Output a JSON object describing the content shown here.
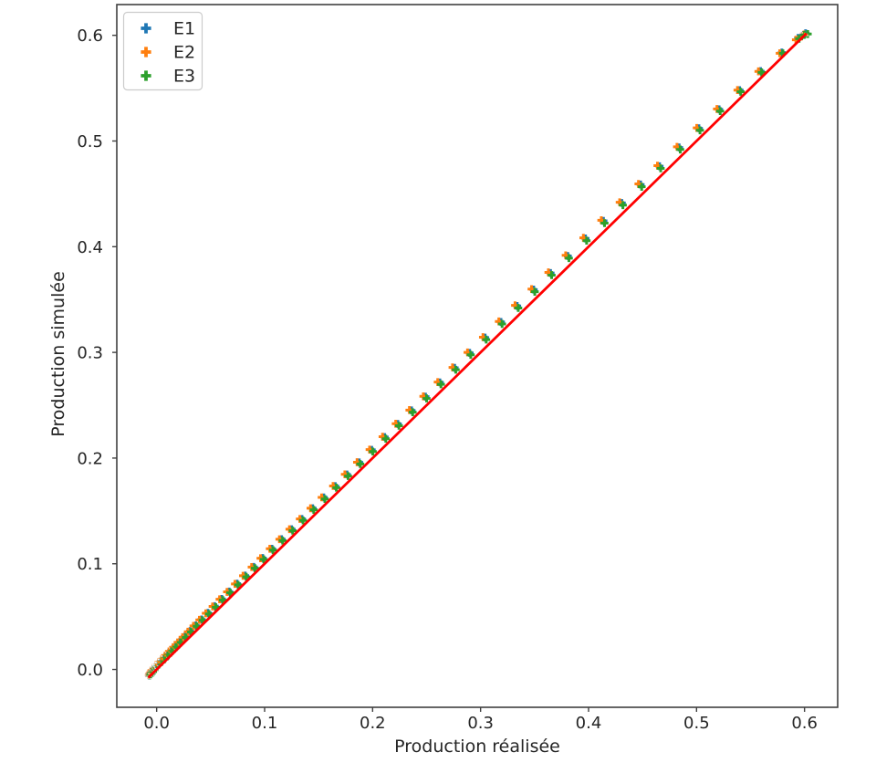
{
  "figure": {
    "background": "#ffffff",
    "text_color": "#262626",
    "spine_color": "#404040"
  },
  "chart_data": {
    "type": "scatter",
    "title": "",
    "xlabel": "Production réalisée",
    "ylabel": "Production simulée",
    "xlim": [
      -0.0369,
      0.6307
    ],
    "ylim": [
      -0.0358,
      0.6291
    ],
    "grid": false,
    "x_ticks": [
      0.0,
      0.1,
      0.2,
      0.3,
      0.4,
      0.5,
      0.6
    ],
    "x_tick_labels": [
      "0.0",
      "0.1",
      "0.2",
      "0.3",
      "0.4",
      "0.5",
      "0.6"
    ],
    "y_ticks": [
      0.0,
      0.1,
      0.2,
      0.3,
      0.4,
      0.5,
      0.6
    ],
    "y_tick_labels": [
      "0.0",
      "0.1",
      "0.2",
      "0.3",
      "0.4",
      "0.5",
      "0.6"
    ],
    "legend": {
      "location": "upper left"
    },
    "identity_line": {
      "name": "identity-line",
      "color": "#ff0000",
      "width": 2.8,
      "from": [
        -0.007,
        -0.007
      ],
      "to": [
        0.601,
        0.601
      ]
    },
    "marker_style": "plus_filled",
    "series": [
      {
        "name": "E1",
        "color": "#1f77b4",
        "points": [
          [
            -0.007,
            -0.0056
          ],
          [
            -0.0068,
            -0.0052
          ],
          [
            -0.0063,
            -0.0045
          ],
          [
            -0.0055,
            -0.0034
          ],
          [
            -0.0043,
            -0.0018
          ],
          [
            -0.0028,
            0.0001
          ],
          [
            -0.0009,
            0.0024
          ],
          [
            0.0012,
            0.0047
          ],
          [
            0.0038,
            0.0076
          ],
          [
            0.0066,
            0.0105
          ],
          [
            0.0098,
            0.014
          ],
          [
            0.0134,
            0.0178
          ],
          [
            0.0172,
            0.0218
          ],
          [
            0.0214,
            0.0262
          ],
          [
            0.026,
            0.0311
          ],
          [
            0.0309,
            0.0363
          ],
          [
            0.0361,
            0.0417
          ],
          [
            0.0416,
            0.0473
          ],
          [
            0.0475,
            0.0535
          ],
          [
            0.0538,
            0.0599
          ],
          [
            0.0603,
            0.0667
          ],
          [
            0.0672,
            0.0737
          ],
          [
            0.0745,
            0.0812
          ],
          [
            0.082,
            0.0888
          ],
          [
            0.09,
            0.097
          ],
          [
            0.0982,
            0.1054
          ],
          [
            0.1068,
            0.1142
          ],
          [
            0.1157,
            0.1233
          ],
          [
            0.125,
            0.1327
          ],
          [
            0.1346,
            0.1424
          ],
          [
            0.1445,
            0.1525
          ],
          [
            0.1548,
            0.1628
          ],
          [
            0.1654,
            0.1735
          ],
          [
            0.1763,
            0.1845
          ],
          [
            0.1876,
            0.1959
          ],
          [
            0.1992,
            0.2078
          ],
          [
            0.2112,
            0.2199
          ],
          [
            0.2234,
            0.2323
          ],
          [
            0.2361,
            0.2451
          ],
          [
            0.249,
            0.2581
          ],
          [
            0.2623,
            0.2716
          ],
          [
            0.276,
            0.2854
          ],
          [
            0.2899,
            0.2995
          ],
          [
            0.3042,
            0.314
          ],
          [
            0.3189,
            0.3288
          ],
          [
            0.3339,
            0.3439
          ],
          [
            0.3492,
            0.3594
          ],
          [
            0.3648,
            0.3751
          ],
          [
            0.3808,
            0.3912
          ],
          [
            0.3972,
            0.4078
          ],
          [
            0.4138,
            0.4244
          ],
          [
            0.4308,
            0.4414
          ],
          [
            0.4482,
            0.4588
          ],
          [
            0.4658,
            0.4761
          ],
          [
            0.4839,
            0.4939
          ],
          [
            0.5022,
            0.512
          ],
          [
            0.5209,
            0.53
          ],
          [
            0.5399,
            0.5481
          ],
          [
            0.5593,
            0.5661
          ],
          [
            0.579,
            0.5837
          ],
          [
            0.594,
            0.5975
          ],
          [
            0.599,
            0.6003
          ],
          [
            0.601,
            0.602
          ]
        ]
      },
      {
        "name": "E2",
        "color": "#ff7f0e",
        "points": [
          [
            -0.0072,
            -0.0052
          ],
          [
            -0.007,
            -0.0048
          ],
          [
            -0.0065,
            -0.004
          ],
          [
            -0.006,
            -0.0032
          ],
          [
            -0.0055,
            -0.0022
          ],
          [
            -0.0048,
            -0.001
          ],
          [
            -0.0029,
            0.0013
          ],
          [
            -0.0008,
            0.0038
          ],
          [
            0.0018,
            0.0067
          ],
          [
            0.0046,
            0.0096
          ],
          [
            0.0078,
            0.0132
          ],
          [
            0.0114,
            0.0171
          ],
          [
            0.0152,
            0.021
          ],
          [
            0.0194,
            0.0256
          ],
          [
            0.024,
            0.0305
          ],
          [
            0.0289,
            0.0357
          ],
          [
            0.0341,
            0.0412
          ],
          [
            0.0396,
            0.0469
          ],
          [
            0.0455,
            0.0531
          ],
          [
            0.0518,
            0.0596
          ],
          [
            0.0583,
            0.0664
          ],
          [
            0.0652,
            0.0734
          ],
          [
            0.0725,
            0.0809
          ],
          [
            0.08,
            0.0886
          ],
          [
            0.088,
            0.0969
          ],
          [
            0.0962,
            0.1052
          ],
          [
            0.1048,
            0.1142
          ],
          [
            0.1137,
            0.1232
          ],
          [
            0.123,
            0.1327
          ],
          [
            0.1326,
            0.1424
          ],
          [
            0.1425,
            0.1525
          ],
          [
            0.1528,
            0.1628
          ],
          [
            0.1634,
            0.1736
          ],
          [
            0.1743,
            0.1846
          ],
          [
            0.1856,
            0.1961
          ],
          [
            0.1972,
            0.208
          ],
          [
            0.2092,
            0.2202
          ],
          [
            0.2214,
            0.2325
          ],
          [
            0.2341,
            0.2454
          ],
          [
            0.247,
            0.2584
          ],
          [
            0.2603,
            0.2719
          ],
          [
            0.274,
            0.2858
          ],
          [
            0.2879,
            0.3
          ],
          [
            0.3022,
            0.3144
          ],
          [
            0.3169,
            0.3293
          ],
          [
            0.3319,
            0.3445
          ],
          [
            0.3472,
            0.3599
          ],
          [
            0.3628,
            0.3757
          ],
          [
            0.3788,
            0.3918
          ],
          [
            0.3952,
            0.4084
          ],
          [
            0.4118,
            0.425
          ],
          [
            0.4288,
            0.442
          ],
          [
            0.4462,
            0.4594
          ],
          [
            0.4638,
            0.4767
          ],
          [
            0.4819,
            0.4945
          ],
          [
            0.5002,
            0.5124
          ],
          [
            0.5189,
            0.5303
          ],
          [
            0.5379,
            0.5482
          ],
          [
            0.5573,
            0.5659
          ],
          [
            0.577,
            0.583
          ],
          [
            0.592,
            0.5958
          ],
          [
            0.597,
            0.5988
          ],
          [
            0.5995,
            0.6008
          ]
        ]
      },
      {
        "name": "E3",
        "color": "#2ca02c",
        "points": [
          [
            -0.006,
            -0.0055
          ],
          [
            -0.0058,
            -0.0052
          ],
          [
            -0.0053,
            -0.0045
          ],
          [
            -0.0045,
            -0.0035
          ],
          [
            -0.0033,
            -0.002
          ],
          [
            -0.0018,
            -0.0002
          ],
          [
            0.0001,
            0.002
          ],
          [
            0.0022,
            0.0043
          ],
          [
            0.0048,
            0.0071
          ],
          [
            0.0076,
            0.01
          ],
          [
            0.0108,
            0.0134
          ],
          [
            0.0144,
            0.0172
          ],
          [
            0.0182,
            0.0211
          ],
          [
            0.0224,
            0.0255
          ],
          [
            0.027,
            0.0303
          ],
          [
            0.0319,
            0.0354
          ],
          [
            0.0371,
            0.0408
          ],
          [
            0.0426,
            0.0464
          ],
          [
            0.0485,
            0.0525
          ],
          [
            0.0548,
            0.0589
          ],
          [
            0.0613,
            0.0656
          ],
          [
            0.0682,
            0.0726
          ],
          [
            0.0755,
            0.08
          ],
          [
            0.083,
            0.0876
          ],
          [
            0.091,
            0.0958
          ],
          [
            0.0992,
            0.1041
          ],
          [
            0.1078,
            0.1129
          ],
          [
            0.1167,
            0.1219
          ],
          [
            0.126,
            0.1313
          ],
          [
            0.1356,
            0.141
          ],
          [
            0.1455,
            0.151
          ],
          [
            0.1558,
            0.1613
          ],
          [
            0.1664,
            0.172
          ],
          [
            0.1773,
            0.183
          ],
          [
            0.1886,
            0.1944
          ],
          [
            0.2002,
            0.2062
          ],
          [
            0.2122,
            0.2183
          ],
          [
            0.2244,
            0.2306
          ],
          [
            0.2371,
            0.2434
          ],
          [
            0.25,
            0.2564
          ],
          [
            0.2633,
            0.2698
          ],
          [
            0.277,
            0.2836
          ],
          [
            0.2909,
            0.2977
          ],
          [
            0.3052,
            0.3121
          ],
          [
            0.3199,
            0.3269
          ],
          [
            0.3349,
            0.342
          ],
          [
            0.3502,
            0.3574
          ],
          [
            0.3658,
            0.3731
          ],
          [
            0.3818,
            0.3892
          ],
          [
            0.3982,
            0.4057
          ],
          [
            0.4148,
            0.4223
          ],
          [
            0.4318,
            0.4393
          ],
          [
            0.4492,
            0.4567
          ],
          [
            0.4668,
            0.4741
          ],
          [
            0.4849,
            0.492
          ],
          [
            0.5032,
            0.5101
          ],
          [
            0.5219,
            0.5283
          ],
          [
            0.5409,
            0.5466
          ],
          [
            0.5603,
            0.5649
          ],
          [
            0.58,
            0.583
          ],
          [
            0.595,
            0.5968
          ],
          [
            0.6,
            0.6004
          ],
          [
            0.603,
            0.6012
          ]
        ]
      }
    ]
  }
}
